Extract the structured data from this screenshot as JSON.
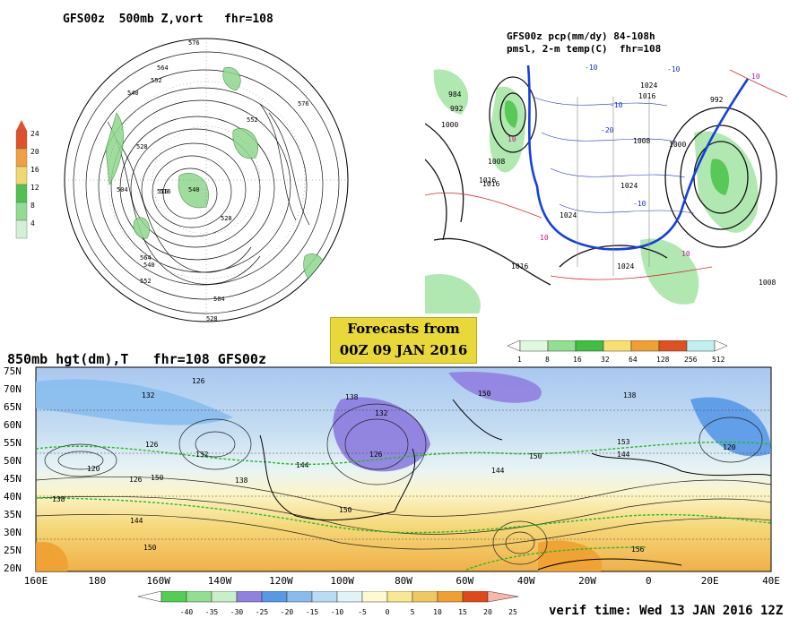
{
  "panel_polar": {
    "title": "GFS00z  500mb Z,vort   fhr=108",
    "contour_labels": [
      "576",
      "564",
      "552",
      "540",
      "528",
      "516",
      "504",
      "576",
      "552",
      "540",
      "516",
      "528",
      "564",
      "540",
      "552",
      "504",
      "528"
    ],
    "colorbar": {
      "ticks": [
        "24",
        "20",
        "16",
        "12",
        "8",
        "4"
      ],
      "colors": [
        "#e0502a",
        "#f0a040",
        "#f0d870",
        "#50c050",
        "#90dc90",
        "#d4f0d4"
      ]
    }
  },
  "panel_precip": {
    "title_line1": "GFS00z pcp(mm/dy) 84-108h",
    "title_line2": "pmsl, 2-m temp(C)  fhr=108",
    "pressure_labels": [
      "984",
      "992",
      "1000",
      "1008",
      "1016",
      "1016",
      "1024",
      "1024",
      "1024",
      "1016",
      "1008",
      "1000",
      "992",
      "1016",
      "1008",
      "1024"
    ],
    "temp_labels": [
      "-10",
      "-10",
      "-20",
      "-10",
      "10",
      "10",
      "10",
      "10",
      "-10"
    ],
    "colorbar": {
      "ticks": [
        "1",
        "8",
        "16",
        "32",
        "64",
        "128",
        "256",
        "512"
      ],
      "colors": [
        "#e0f8e0",
        "#90e090",
        "#40c040",
        "#f8e070",
        "#f0a030",
        "#e05020",
        "#c0f0f0"
      ]
    }
  },
  "forecast_box": {
    "line1": "Forecasts from",
    "line2": "00Z 09 JAN 2016"
  },
  "panel_850": {
    "title": "850mb hgt(dm),T   fhr=108 GFS00z",
    "lat_labels": [
      "75N",
      "70N",
      "65N",
      "60N",
      "55N",
      "50N",
      "45N",
      "40N",
      "35N",
      "30N",
      "25N",
      "20N"
    ],
    "lon_labels": [
      "160E",
      "180",
      "160W",
      "140W",
      "120W",
      "100W",
      "80W",
      "60W",
      "40W",
      "20W",
      "0",
      "20E",
      "40E"
    ],
    "height_labels": [
      "132",
      "126",
      "138",
      "132",
      "150",
      "138",
      "126",
      "120",
      "132",
      "126",
      "150",
      "138",
      "144",
      "126",
      "150",
      "144",
      "150",
      "153",
      "144",
      "120",
      "156",
      "150",
      "144",
      "138"
    ],
    "colorbar": {
      "ticks": [
        "-40",
        "-35",
        "-30",
        "-25",
        "-20",
        "-15",
        "-10",
        "-5",
        "0",
        "5",
        "10",
        "15",
        "20",
        "25"
      ],
      "colors": [
        "#50d050",
        "#90e090",
        "#c8f0c8",
        "#9080e0",
        "#5898e8",
        "#88bcee",
        "#b8dcf4",
        "#e0f4f8",
        "#fff8d0",
        "#f8e890",
        "#f0c860",
        "#f0a030",
        "#e04818"
      ]
    }
  },
  "verif_time": "verif time: Wed 13 JAN 2016 12Z"
}
